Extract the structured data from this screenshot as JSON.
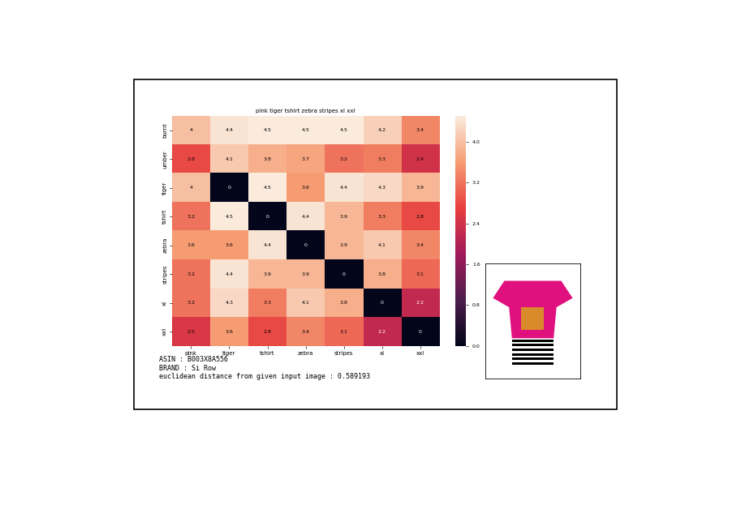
{
  "chart_data": {
    "type": "heatmap",
    "title": "pink tiger tshirt zebra stripes xl xxl",
    "categories": [
      "pink",
      "tiger",
      "tshirt",
      "zebra",
      "stripes",
      "xl",
      "xxl"
    ],
    "row_categories": [
      "burnt",
      "umber",
      "tiger",
      "tshirt",
      "zebra",
      "stripes",
      "xl",
      "xxl"
    ],
    "cells": [
      [
        4,
        4.4,
        4.5,
        4.5,
        4.5,
        4.2,
        3.4
      ],
      [
        2.8,
        4.1,
        3.8,
        3.7,
        3.2,
        3.3,
        2.4
      ],
      [
        4,
        0,
        4.5,
        3.6,
        4.4,
        4.3,
        3.9
      ],
      [
        3.2,
        4.5,
        0,
        4.4,
        3.9,
        3.3,
        2.8
      ],
      [
        3.6,
        3.6,
        4.4,
        0,
        3.9,
        4.1,
        3.4
      ],
      [
        3.2,
        4.4,
        3.9,
        3.9,
        0,
        3.8,
        3.1
      ],
      [
        3.2,
        4.3,
        3.3,
        4.1,
        3.8,
        0,
        2.2
      ],
      [
        2.5,
        3.6,
        2.8,
        3.4,
        3.1,
        2.2,
        0
      ]
    ],
    "data_labels": true,
    "colorbar_range": [
      0,
      4.5
    ],
    "colorbar_ticks": [
      {
        "value": 0,
        "label": "0.0"
      },
      0.8,
      1.6,
      2.4,
      3.2,
      {
        "value": 4,
        "label": "4.0"
      }
    ],
    "annotations": [
      "ASIN : B003X8A556",
      "BRAND : Si Row",
      "euclidean distance from given input image : 0.589193"
    ]
  }
}
